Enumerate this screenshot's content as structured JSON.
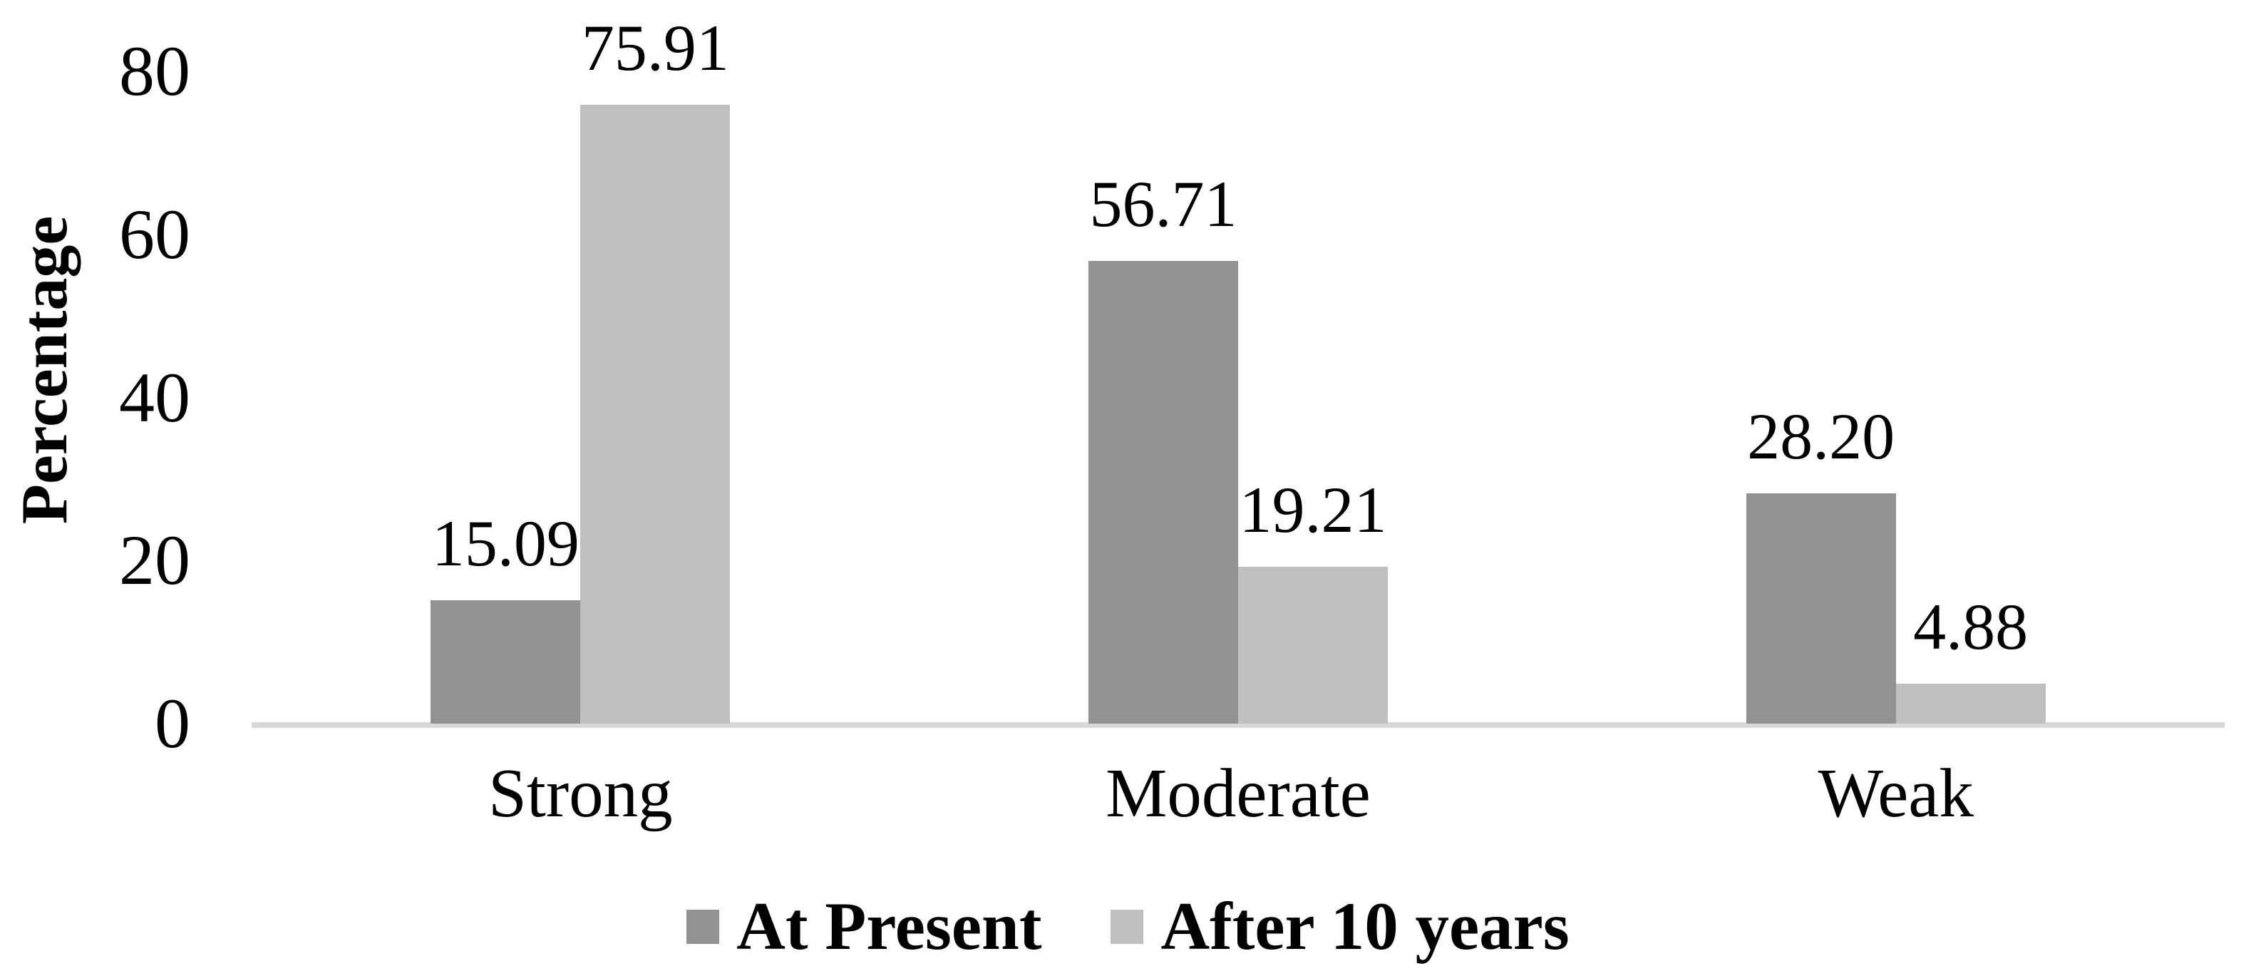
{
  "chart_data": {
    "type": "bar",
    "title": "",
    "ylabel": "Percentage",
    "xlabel": "",
    "categories": [
      "Strong",
      "Moderate",
      "Weak"
    ],
    "series": [
      {
        "name": "At Present",
        "color": "#929292",
        "values": [
          15.09,
          56.71,
          28.2
        ],
        "labels": [
          "15.09",
          "56.71",
          "28.20"
        ]
      },
      {
        "name": "After 10 years",
        "color": "#bfbfbf",
        "values": [
          75.91,
          19.21,
          4.88
        ],
        "labels": [
          "75.91",
          "19.21",
          "4.88"
        ]
      }
    ],
    "yticks": [
      "80",
      "60",
      "40",
      "20",
      "0"
    ],
    "ytick_values": [
      80,
      60,
      40,
      20,
      0
    ],
    "ylim": [
      0,
      80
    ],
    "grid": false,
    "data_labels": true,
    "legend_position": "bottom",
    "axis_line_color": "#d9d9d9",
    "background_color": "#ffffff",
    "text_color": "#000000"
  }
}
